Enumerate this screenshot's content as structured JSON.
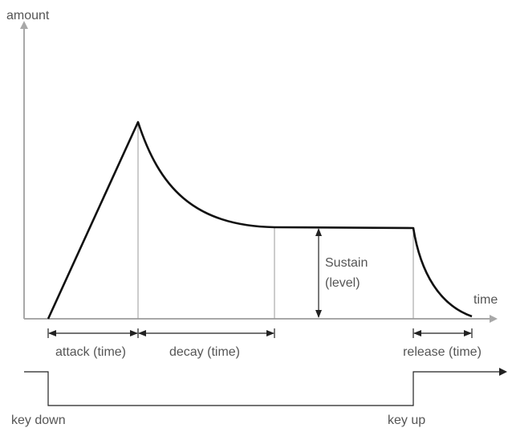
{
  "labels": {
    "y_axis": "amount",
    "x_axis": "time",
    "sustain": "Sustain",
    "sustain_sub": "(level)",
    "attack": "attack (time)",
    "decay": "decay (time)",
    "release": "release (time)",
    "key_down": "key down",
    "key_up": "key up"
  }
}
